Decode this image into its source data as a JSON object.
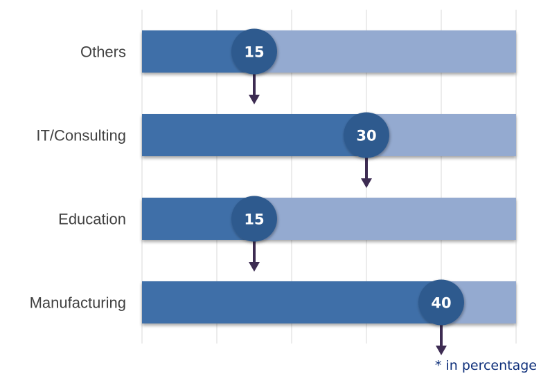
{
  "chart_data": {
    "type": "bar",
    "orientation": "horizontal",
    "categories": [
      "Others",
      "IT/Consulting",
      "Education",
      "Manufacturing"
    ],
    "values": [
      15,
      30,
      15,
      40
    ],
    "value_labels": [
      "15",
      "30",
      "15",
      "40"
    ],
    "xlim": [
      0,
      50
    ],
    "grid": true,
    "footnote": "* in percentage",
    "colors": {
      "bar_fill": "#3f6fa8",
      "bar_track": "#94aad0",
      "badge": "#2e5a8e",
      "arrow": "#3d2c52",
      "grid": "#d9d9d9",
      "label": "#404040",
      "footnote": "#0e2f7a"
    }
  }
}
